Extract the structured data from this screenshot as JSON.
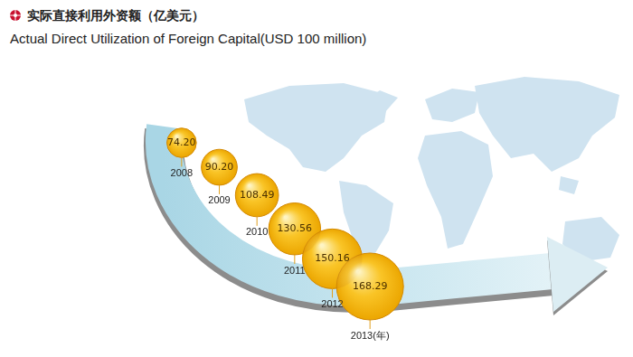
{
  "chart_data": {
    "type": "bubble",
    "title": "实际直接利用外资额（亿美元）",
    "subtitle": "Actual Direct Utilization of Foreign Capital(USD 100 million)",
    "categories": [
      "2008",
      "2009",
      "2010",
      "2011",
      "2012",
      "2013(年)"
    ],
    "values": [
      74.2,
      90.2,
      108.49,
      130.56,
      150.16,
      168.29
    ],
    "value_labels": [
      "74.20",
      "90.20",
      "108.49",
      "130.56",
      "150.16",
      "168.29"
    ],
    "color": "#f7b500",
    "data_labels": true,
    "tick_labels": false,
    "grid": false
  }
}
